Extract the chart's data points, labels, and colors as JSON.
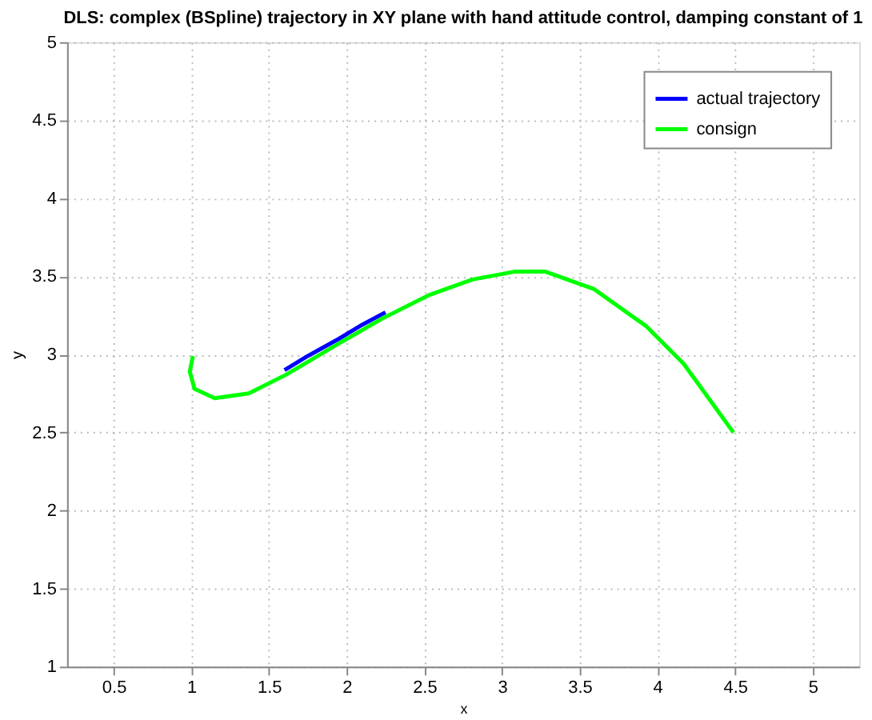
{
  "chart_data": {
    "type": "line",
    "title": "DLS: complex (BSpline) trajectory in XY plane with hand attitude control, damping constant of 1",
    "xlabel": "x",
    "ylabel": "y",
    "xlim": [
      0.2,
      5.3
    ],
    "ylim": [
      1,
      5
    ],
    "xticks": [
      0.5,
      1,
      1.5,
      2,
      2.5,
      3,
      3.5,
      4,
      4.5,
      5
    ],
    "yticks": [
      1,
      1.5,
      2,
      2.5,
      3,
      3.5,
      4,
      4.5,
      5
    ],
    "grid": true,
    "legend": "top right",
    "line_style": "solid",
    "marker": "none",
    "series": [
      {
        "name": "actual trajectory",
        "color": "#0000ff",
        "x": [
          1.6,
          1.75,
          1.95,
          2.1,
          2.25
        ],
        "values": [
          2.9,
          2.99,
          3.1,
          3.19,
          3.27
        ]
      },
      {
        "name": "consign",
        "color": "#00ff00",
        "x": [
          1.01,
          0.99,
          1.02,
          1.15,
          1.37,
          1.61,
          1.95,
          2.23,
          2.53,
          2.81,
          3.08,
          3.28,
          3.59,
          3.93,
          4.17,
          4.49
        ],
        "values": [
          2.99,
          2.89,
          2.78,
          2.72,
          2.75,
          2.87,
          3.07,
          3.23,
          3.38,
          3.48,
          3.53,
          3.53,
          3.42,
          3.18,
          2.94,
          2.5
        ]
      }
    ]
  }
}
